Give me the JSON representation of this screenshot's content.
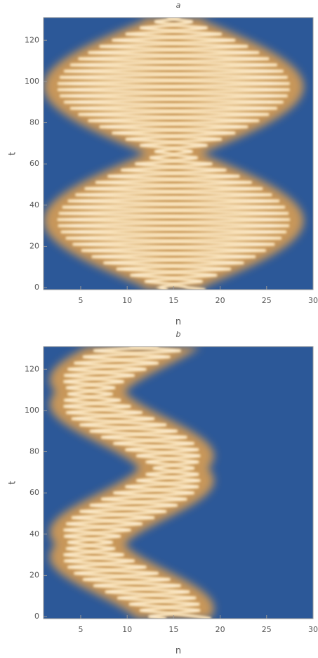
{
  "chart_data": [
    {
      "type": "density",
      "title": "a",
      "x_label": "n",
      "y_label": "t",
      "xlim": [
        1,
        30
      ],
      "ylim": [
        -1,
        131
      ],
      "xticks": [
        5,
        10,
        15,
        20,
        25,
        30
      ],
      "yticks": [
        0,
        20,
        40,
        60,
        80,
        100,
        120
      ],
      "color": "#2c5898"
    },
    {
      "type": "density",
      "title": "b",
      "x_label": "n",
      "y_label": "t",
      "xlim": [
        1,
        30
      ],
      "ylim": [
        -1,
        131
      ],
      "xticks": [
        5,
        10,
        15,
        20,
        25,
        30
      ],
      "yticks": [
        0,
        20,
        40,
        60,
        80,
        100,
        120
      ],
      "color": "#2c5898"
    }
  ]
}
